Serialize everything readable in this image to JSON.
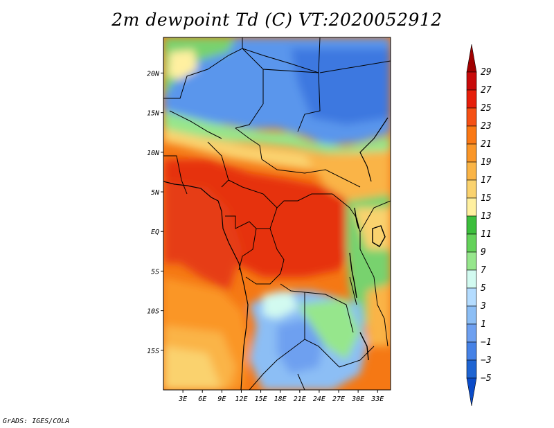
{
  "title": "2m dewpoint Td (C) VT:2020052912",
  "footer": "GrADS: IGES/COLA",
  "map": {
    "lat_labels": [
      "20N",
      "15N",
      "10N",
      "5N",
      "EQ",
      "5S",
      "10S",
      "15S"
    ],
    "lat_values": [
      20,
      15,
      10,
      5,
      0,
      -5,
      -10,
      -15
    ],
    "lon_labels": [
      "3E",
      "6E",
      "9E",
      "12E",
      "15E",
      "18E",
      "21E",
      "24E",
      "27E",
      "30E",
      "33E"
    ],
    "lon_values": [
      3,
      6,
      9,
      12,
      15,
      18,
      21,
      24,
      27,
      30,
      33
    ],
    "lon_range": [
      0,
      35
    ],
    "lat_range": [
      -20,
      24.5
    ]
  },
  "legend": {
    "levels": [
      "29",
      "27",
      "25",
      "23",
      "21",
      "19",
      "17",
      "15",
      "13",
      "11",
      "9",
      "7",
      "5",
      "3",
      "1",
      "−1",
      "−3",
      "−5"
    ],
    "colors": [
      "#a00000",
      "#c80a0a",
      "#e61e0a",
      "#f55014",
      "#fa7814",
      "#fa9628",
      "#fab446",
      "#fad26e",
      "#fff0a0",
      "#3cbe3c",
      "#64d25a",
      "#96e68c",
      "#d2faf0",
      "#b4dcff",
      "#8cbef5",
      "#6ea0f0",
      "#4682e6",
      "#1e64d2",
      "#0a4bc8"
    ]
  }
}
